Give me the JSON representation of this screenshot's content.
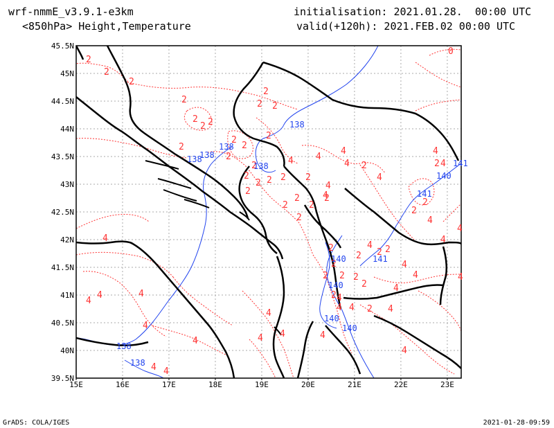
{
  "header": {
    "model": "wrf-nmmE_v3.9.1-e3km",
    "field": "<850hPa> Height,Temperature",
    "init": "initialisation: 2021.01.28.  00:00 UTC",
    "valid": "valid(+120h): 2021.FEB.02 00:00 UTC"
  },
  "footer": {
    "left": "GrADS: COLA/IGES",
    "right": "2021-01-28-09:59"
  },
  "map": {
    "lon_ticks": [
      "15E",
      "16E",
      "17E",
      "18E",
      "19E",
      "20E",
      "21E",
      "22E",
      "23E"
    ],
    "lat_ticks": [
      "45.5N",
      "45N",
      "44.5N",
      "44N",
      "43.5N",
      "43N",
      "42.5N",
      "42N",
      "41.5N",
      "41N",
      "40.5N",
      "40N",
      "39.5N"
    ],
    "lon_range": [
      15,
      23.3
    ],
    "lat_range": [
      39.5,
      45.5
    ],
    "grid": true,
    "colors": {
      "temperature": "#ff3333",
      "height": "#2244ee",
      "coast": "#000000",
      "grid": "#aaaaaa"
    },
    "temperature_labels": [
      "0",
      "2",
      "4"
    ],
    "height_labels": [
      "138",
      "140",
      "141"
    ]
  }
}
